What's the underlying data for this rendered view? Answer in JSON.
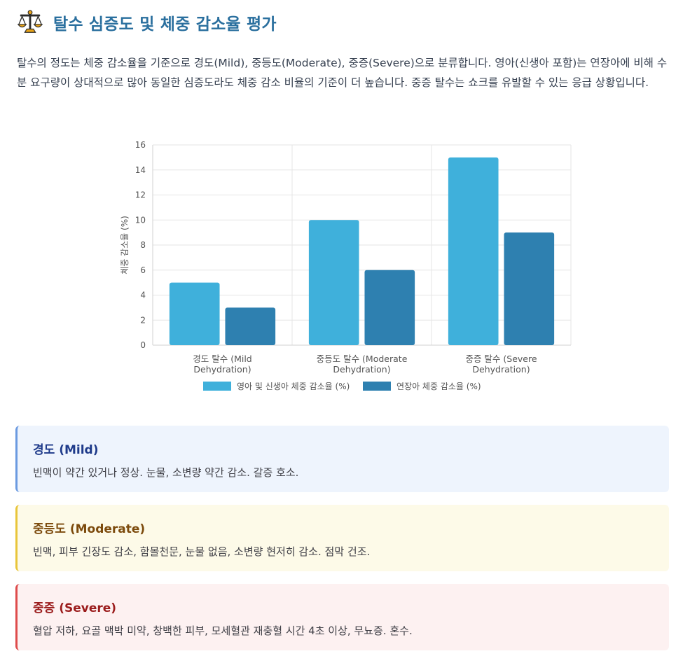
{
  "header": {
    "title": "탈수 심증도 및 체중 감소율 평가",
    "icon": "balance-scale-icon"
  },
  "intro": "탈수의 정도는 체중 감소율을 기준으로 경도(Mild), 중등도(Moderate), 중증(Severe)으로 분류합니다. 영아(신생아 포함)는 연장아에 비해 수분 요구량이 상대적으로 많아 동일한 심증도라도 체중 감소 비율의 기준이 더 높습니다. 중증 탈수는 쇼크를 유발할 수 있는 응급 상황입니다.",
  "chart_data": {
    "type": "bar",
    "categories": [
      [
        "경도 탈수 (Mild",
        "Dehydration)"
      ],
      [
        "중등도 탈수 (Moderate",
        "Dehydration)"
      ],
      [
        "중증 탈수 (Severe",
        "Dehydration)"
      ]
    ],
    "series": [
      {
        "name": "영아 및 신생아 체중 감소율 (%)",
        "values": [
          5,
          10,
          15
        ],
        "color": "#3fb0db"
      },
      {
        "name": "연장아 체중 감소율 (%)",
        "values": [
          3,
          6,
          9
        ],
        "color": "#2e80b0"
      }
    ],
    "ylabel": "체중 감소율 (%)",
    "ylim": [
      0,
      16
    ],
    "yticks": [
      0,
      2,
      4,
      6,
      8,
      10,
      12,
      14,
      16
    ],
    "grid": true,
    "legend": "bottom"
  },
  "cards": {
    "mild": {
      "title": "경도 (Mild)",
      "desc": "빈맥이 약간 있거나 정상. 눈물, 소변량 약간 감소. 갈증 호소."
    },
    "moderate": {
      "title": "중등도 (Moderate)",
      "desc": "빈맥, 피부 긴장도 감소, 함몰천문, 눈물 없음, 소변량 현저히 감소. 점막 건조."
    },
    "severe": {
      "title": "중증 (Severe)",
      "desc": "혈압 저하, 요골 맥박 미약, 창백한 피부, 모세혈관 재충혈 시간 4초 이상, 무뇨증. 혼수."
    }
  }
}
